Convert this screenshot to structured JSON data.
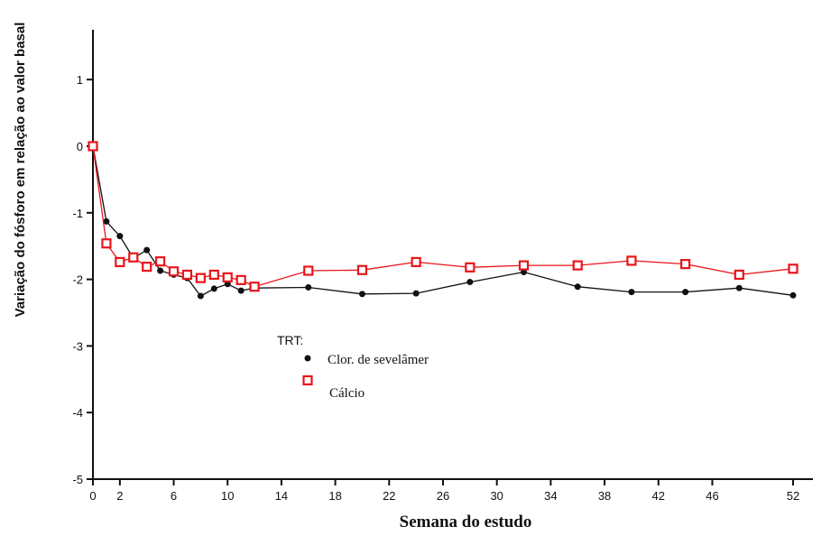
{
  "chart_data": {
    "type": "line",
    "xlabel": "Semana do estudo",
    "ylabel": "Variação do fósforo em relação ao valor basal",
    "xlim": [
      0,
      54
    ],
    "ylim": [
      -5,
      1.75
    ],
    "x_ticks": [
      0,
      2,
      6,
      10,
      14,
      18,
      22,
      26,
      30,
      34,
      38,
      42,
      46,
      52
    ],
    "y_ticks": [
      1,
      0,
      -1,
      -2,
      -3,
      -4,
      -5
    ],
    "grid": false,
    "legend": {
      "title": "TRT:",
      "position": "lower-left",
      "entries": [
        "Clor. de sevelâmer",
        "Cálcio"
      ]
    },
    "series": [
      {
        "name": "Clor. de sevelâmer",
        "color": "#111111",
        "marker": "filled-circle",
        "x": [
          0,
          1,
          2,
          3,
          4,
          5,
          6,
          7,
          8,
          9,
          10,
          11,
          12,
          16,
          20,
          24,
          28,
          32,
          36,
          40,
          44,
          48,
          52
        ],
        "y": [
          0,
          -1.13,
          -1.35,
          -1.68,
          -1.56,
          -1.87,
          -1.93,
          -1.98,
          -2.25,
          -2.14,
          -2.07,
          -2.17,
          -2.13,
          -2.12,
          -2.22,
          -2.21,
          -2.04,
          -1.89,
          -2.11,
          -2.19,
          -2.19,
          -2.13,
          -2.24
        ]
      },
      {
        "name": "Cálcio",
        "color": "#e8151b",
        "marker": "open-square",
        "x": [
          0,
          1,
          2,
          3,
          4,
          5,
          6,
          7,
          8,
          9,
          10,
          11,
          12,
          16,
          20,
          24,
          28,
          32,
          36,
          40,
          44,
          48,
          52
        ],
        "y": [
          0,
          -1.46,
          -1.74,
          -1.67,
          -1.81,
          -1.73,
          -1.88,
          -1.93,
          -1.98,
          -1.93,
          -1.97,
          -2.01,
          -2.11,
          -1.87,
          -1.86,
          -1.74,
          -1.82,
          -1.79,
          -1.79,
          -1.72,
          -1.77,
          -1.93,
          -1.84
        ]
      }
    ]
  }
}
